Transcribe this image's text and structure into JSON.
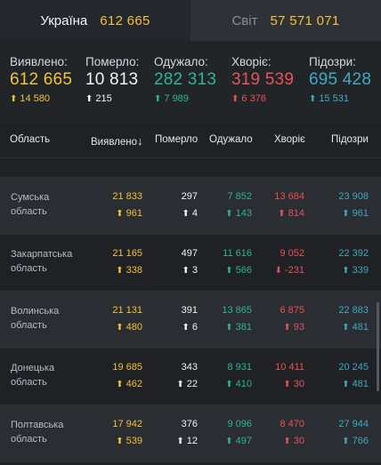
{
  "tabs": [
    {
      "label": "Україна",
      "value": "612 665",
      "active": true
    },
    {
      "label": "Світ",
      "value": "57 571 071",
      "active": false
    }
  ],
  "summary": [
    {
      "label": "Виявлено:",
      "value": "612 665",
      "delta": "14 580",
      "arrow": "up",
      "color": "#f2c23a"
    },
    {
      "label": "Померло:",
      "value": "10 813",
      "delta": "215",
      "arrow": "up",
      "color": "#f2f3f4"
    },
    {
      "label": "Одужало:",
      "value": "282 313",
      "delta": "7 989",
      "arrow": "up",
      "color": "#2fb58f"
    },
    {
      "label": "Хворіє:",
      "value": "319 539",
      "delta": "6 376",
      "arrow": "up",
      "color": "#e8525a"
    },
    {
      "label": "Підозри:",
      "value": "695 428",
      "delta": "15 531",
      "arrow": "up",
      "color": "#3fa9c2"
    }
  ],
  "table": {
    "headers": {
      "region": "Область",
      "detected": "Виявлено",
      "sort_icon": "↓",
      "died": "Померло",
      "recovered": "Одужало",
      "sick": "Хворіє",
      "suspected": "Підозри"
    },
    "rows": [
      {
        "region": [
          "Сумська",
          "область"
        ],
        "detected": "21 833",
        "detected_d": "961",
        "died": "297",
        "died_d": "4",
        "recovered": "7 852",
        "recovered_d": "143",
        "sick": "13 684",
        "sick_d": "814",
        "sick_arrow": "up",
        "suspected": "23 908",
        "suspected_d": "961"
      },
      {
        "region": [
          "Закарпатська",
          "область"
        ],
        "detected": "21 165",
        "detected_d": "338",
        "died": "497",
        "died_d": "3",
        "recovered": "11 616",
        "recovered_d": "566",
        "sick": "9 052",
        "sick_d": "-231",
        "sick_arrow": "down",
        "suspected": "22 392",
        "suspected_d": "339"
      },
      {
        "region": [
          "Волинська",
          "область"
        ],
        "detected": "21 131",
        "detected_d": "480",
        "died": "391",
        "died_d": "6",
        "recovered": "13 865",
        "recovered_d": "381",
        "sick": "6 875",
        "sick_d": "93",
        "sick_arrow": "up",
        "suspected": "22 883",
        "suspected_d": "481"
      },
      {
        "region": [
          "Донецька",
          "область"
        ],
        "detected": "19 685",
        "detected_d": "462",
        "died": "343",
        "died_d": "22",
        "recovered": "8 931",
        "recovered_d": "410",
        "sick": "10 411",
        "sick_d": "30",
        "sick_arrow": "up",
        "suspected": "20 245",
        "suspected_d": "481"
      },
      {
        "region": [
          "Полтавська",
          "область"
        ],
        "detected": "17 942",
        "detected_d": "539",
        "died": "376",
        "died_d": "12",
        "recovered": "9 096",
        "recovered_d": "497",
        "sick": "8 470",
        "sick_d": "30",
        "sick_arrow": "up",
        "suspected": "27 944",
        "suspected_d": "766"
      }
    ]
  }
}
